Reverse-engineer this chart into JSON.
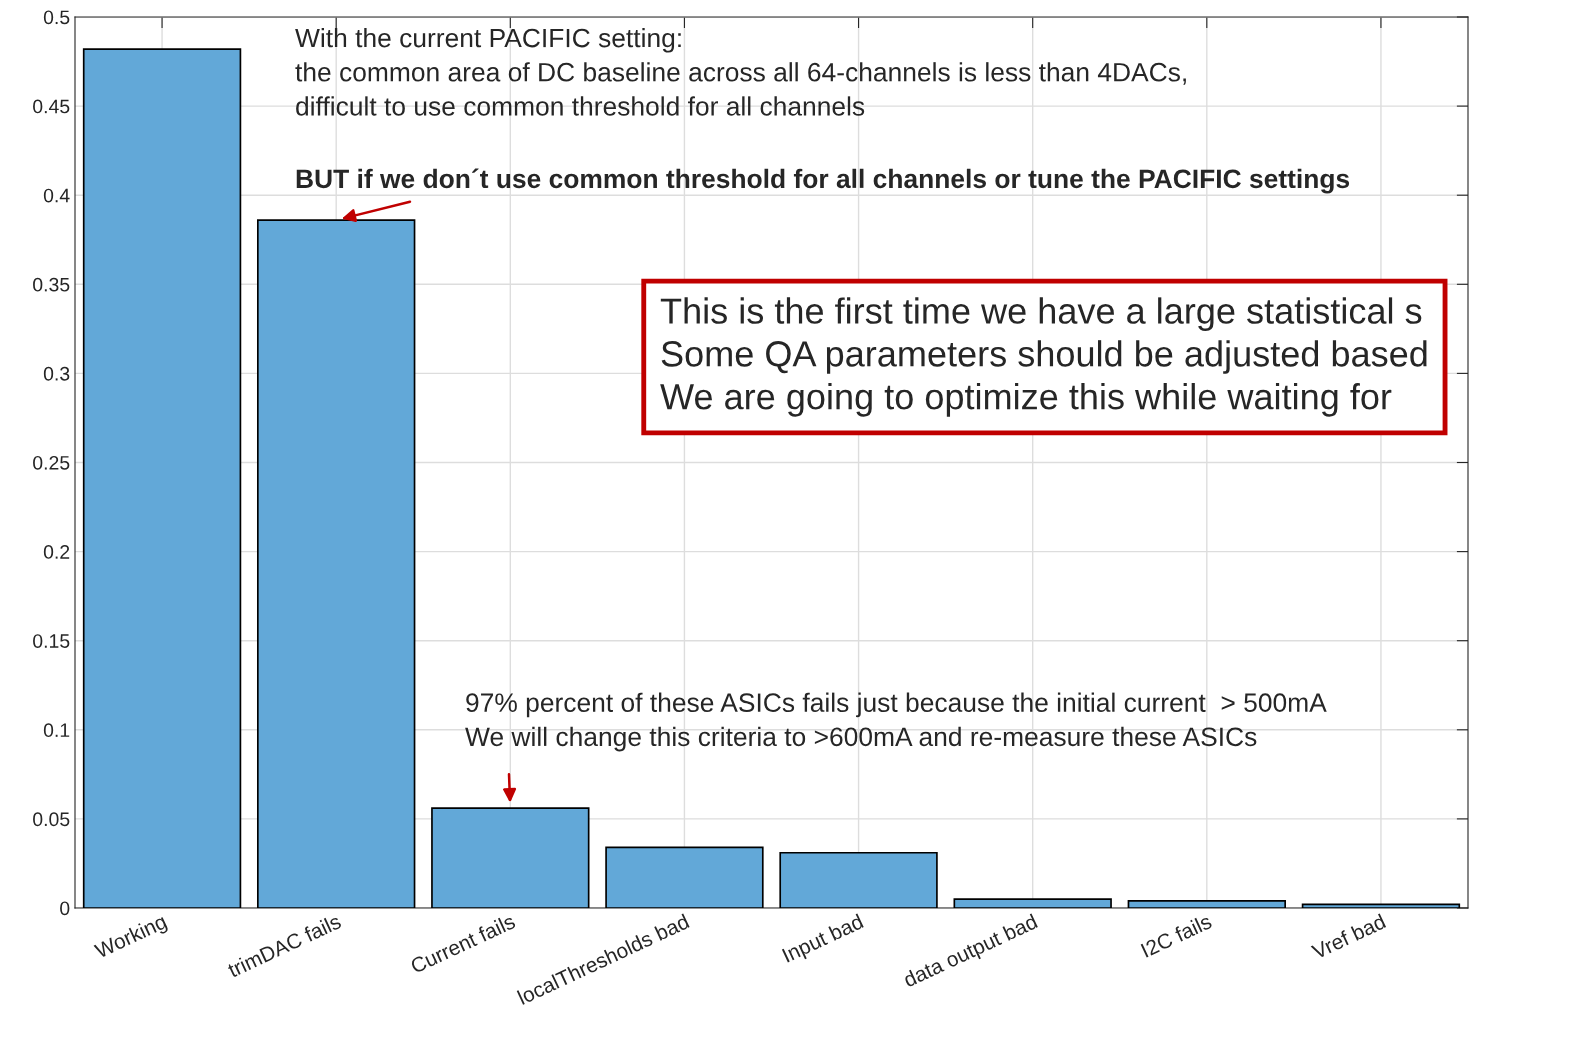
{
  "chart_data": {
    "type": "bar",
    "categories": [
      "Working",
      "trimDAC fails",
      "Current fails",
      "localThresholds bad",
      "Input bad",
      "data output bad",
      "I2C fails",
      "Vref bad"
    ],
    "values": [
      0.482,
      0.386,
      0.056,
      0.034,
      0.031,
      0.005,
      0.004,
      0.002
    ],
    "color": "#62a8d8",
    "ylim": [
      0,
      0.5
    ],
    "yticks": [
      0,
      0.05,
      0.1,
      0.15,
      0.2,
      0.25,
      0.3,
      0.35,
      0.4,
      0.45,
      0.5
    ],
    "grid": true,
    "annotations": [
      "With the current PACIFIC setting:\nthe common area of DC baseline across all 64-channels is less than 4DACs,\ndifficult to use common threshold for all channels",
      {
        "text": "BUT if we don´t use common threshold for all channels or tune the PACIFIC settings",
        "x": "trimDAC fails",
        "y": 0.386
      },
      "This is the first time we have a large statistical s\nSome QA parameters should be adjusted based\nWe are going to optimize this while waiting for",
      {
        "text": "97% percent of these ASICs fails just because the initial current  > 500mA\nWe will change this criteria to >600mA and re-measure these ASICs",
        "x": "Current fails",
        "y": 0.056
      }
    ]
  }
}
